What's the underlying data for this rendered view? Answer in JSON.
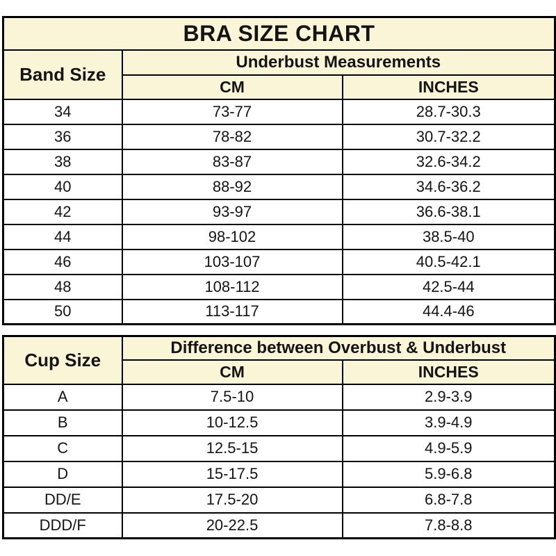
{
  "title": "BRA SIZE CHART",
  "colors": {
    "header_bg": "#FBF5D8",
    "cell_bg": "#FFFFFF",
    "border": "#000000",
    "text": "#141414"
  },
  "band_table": {
    "row_header": "Band Size",
    "group_header": "Underbust Measurements",
    "col_cm": "CM",
    "col_inches": "INCHES",
    "rows": [
      {
        "size": "34",
        "cm": "73-77",
        "inches": "28.7-30.3"
      },
      {
        "size": "36",
        "cm": "78-82",
        "inches": "30.7-32.2"
      },
      {
        "size": "38",
        "cm": "83-87",
        "inches": "32.6-34.2"
      },
      {
        "size": "40",
        "cm": "88-92",
        "inches": "34.6-36.2"
      },
      {
        "size": "42",
        "cm": "93-97",
        "inches": "36.6-38.1"
      },
      {
        "size": "44",
        "cm": "98-102",
        "inches": "38.5-40"
      },
      {
        "size": "46",
        "cm": "103-107",
        "inches": "40.5-42.1"
      },
      {
        "size": "48",
        "cm": "108-112",
        "inches": "42.5-44"
      },
      {
        "size": "50",
        "cm": "113-117",
        "inches": "44.4-46"
      }
    ]
  },
  "cup_table": {
    "row_header": "Cup Size",
    "group_header": "Difference between Overbust & Underbust",
    "col_cm": "CM",
    "col_inches": "INCHES",
    "rows": [
      {
        "size": "A",
        "cm": "7.5-10",
        "inches": "2.9-3.9"
      },
      {
        "size": "B",
        "cm": "10-12.5",
        "inches": "3.9-4.9"
      },
      {
        "size": "C",
        "cm": "12.5-15",
        "inches": "4.9-5.9"
      },
      {
        "size": "D",
        "cm": "15-17.5",
        "inches": "5.9-6.8"
      },
      {
        "size": "DD/E",
        "cm": "17.5-20",
        "inches": "6.8-7.8"
      },
      {
        "size": "DDD/F",
        "cm": "20-22.5",
        "inches": "7.8-8.8"
      }
    ]
  },
  "chart_data": [
    {
      "type": "table",
      "title": "BRA SIZE CHART",
      "group_header": "Underbust Measurements",
      "columns": [
        "Band Size",
        "CM",
        "INCHES"
      ],
      "rows": [
        [
          "34",
          "73-77",
          "28.7-30.3"
        ],
        [
          "36",
          "78-82",
          "30.7-32.2"
        ],
        [
          "38",
          "83-87",
          "32.6-34.2"
        ],
        [
          "40",
          "88-92",
          "34.6-36.2"
        ],
        [
          "42",
          "93-97",
          "36.6-38.1"
        ],
        [
          "44",
          "98-102",
          "38.5-40"
        ],
        [
          "46",
          "103-107",
          "40.5-42.1"
        ],
        [
          "48",
          "108-112",
          "42.5-44"
        ],
        [
          "50",
          "113-117",
          "44.4-46"
        ]
      ]
    },
    {
      "type": "table",
      "title": "Cup Size",
      "group_header": "Difference between Overbust & Underbust",
      "columns": [
        "Cup Size",
        "CM",
        "INCHES"
      ],
      "rows": [
        [
          "A",
          "7.5-10",
          "2.9-3.9"
        ],
        [
          "B",
          "10-12.5",
          "3.9-4.9"
        ],
        [
          "C",
          "12.5-15",
          "4.9-5.9"
        ],
        [
          "D",
          "15-17.5",
          "5.9-6.8"
        ],
        [
          "DD/E",
          "17.5-20",
          "6.8-7.8"
        ],
        [
          "DDD/F",
          "20-22.5",
          "7.8-8.8"
        ]
      ]
    }
  ]
}
